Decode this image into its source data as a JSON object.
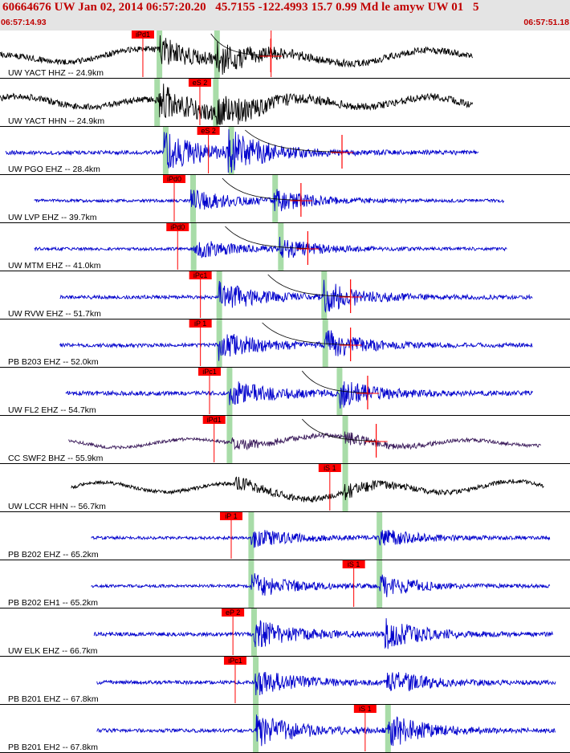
{
  "header": {
    "title": "60664676 UW Jan 02, 2014 06:57:20.20   45.7155 -122.4993 15.7 0.99 Md le amyw UW 01   5",
    "time_start": "06:57:14.93",
    "time_end": "06:57:51.18"
  },
  "colors": {
    "accent_red": "#ff0000",
    "phase_band": "#a8dca8",
    "trace_blue": "#0000cc",
    "trace_black": "#000000",
    "trace_purple": "#3a1a5a"
  },
  "traces": [
    {
      "label": "UW YACT HHZ -- 24.9km",
      "color": "black",
      "amp": 22,
      "seed": 11,
      "xs": 0.0,
      "xe": 0.83,
      "p": 0.279,
      "s": 0.38,
      "growth": 1.5,
      "lowfreq": 0.8,
      "picks": [
        {
          "label": "iPd1",
          "x": 0.245
        },
        {
          "label": "",
          "x": 0.47
        }
      ],
      "bands": [
        0.279,
        0.38
      ],
      "decay": [
        0.37,
        0.475
      ],
      "amp_marker": 0.475
    },
    {
      "label": "UW YACT HHN -- 24.9km",
      "color": "black",
      "amp": 24,
      "seed": 23,
      "xs": 0.0,
      "xe": 0.83,
      "p": 0.279,
      "s": 0.38,
      "growth": 1.6,
      "lowfreq": 0.9,
      "picks": [
        {
          "label": "eS 2",
          "x": 0.345
        }
      ],
      "bands": [
        0.275,
        0.378
      ],
      "decay": null,
      "amp_marker": null
    },
    {
      "label": "UW PGO EHZ -- 28.4km",
      "color": "blue",
      "amp": 15,
      "seed": 37,
      "xs": 0.01,
      "xe": 0.84,
      "p": 0.288,
      "s": 0.4,
      "growth": 3.2,
      "lowfreq": 0.05,
      "picks": [
        {
          "label": "eS 2",
          "x": 0.36
        }
      ],
      "bands": [
        0.29,
        0.405
      ],
      "decay": [
        0.43,
        0.6
      ],
      "amp_marker": 0.6
    },
    {
      "label": "UW LVP EHZ -- 39.7km",
      "color": "blue",
      "amp": 11,
      "seed": 41,
      "xs": 0.06,
      "xe": 0.885,
      "p": 0.335,
      "s": 0.48,
      "growth": 2.4,
      "lowfreq": 0.03,
      "picks": [
        {
          "label": "iPd0",
          "x": 0.3
        }
      ],
      "bands": [
        0.338,
        0.482
      ],
      "decay": [
        0.39,
        0.528
      ],
      "amp_marker": 0.528
    },
    {
      "label": "UW MTM EHZ -- 41.0km",
      "color": "blue",
      "amp": 11,
      "seed": 53,
      "xs": 0.06,
      "xe": 0.89,
      "p": 0.339,
      "s": 0.49,
      "growth": 2.2,
      "lowfreq": 0.03,
      "picks": [
        {
          "label": "iPd0",
          "x": 0.306
        }
      ],
      "bands": [
        0.339,
        0.492
      ],
      "decay": [
        0.395,
        0.54
      ],
      "amp_marker": 0.54
    },
    {
      "label": "UW RVW EHZ -- 51.7km",
      "color": "blue",
      "amp": 14,
      "seed": 61,
      "xs": 0.105,
      "xe": 0.935,
      "p": 0.384,
      "s": 0.568,
      "growth": 2.6,
      "lowfreq": 0.03,
      "picks": [
        {
          "label": "iPc1",
          "x": 0.346
        }
      ],
      "bands": [
        0.384,
        0.568
      ],
      "decay": [
        0.47,
        0.615
      ],
      "amp_marker": 0.615
    },
    {
      "label": "PB B203 EHZ -- 52.0km",
      "color": "blue",
      "amp": 14,
      "seed": 71,
      "xs": 0.105,
      "xe": 0.935,
      "p": 0.384,
      "s": 0.57,
      "growth": 2.6,
      "lowfreq": 0.03,
      "picks": [
        {
          "label": "iP 1",
          "x": 0.346
        }
      ],
      "bands": [
        0.384,
        0.57
      ],
      "decay": [
        0.46,
        0.615
      ],
      "amp_marker": 0.615
    },
    {
      "label": "UW FL2 EHZ -- 54.7km",
      "color": "blue",
      "amp": 16,
      "seed": 83,
      "xs": 0.115,
      "xe": 0.935,
      "p": 0.402,
      "s": 0.595,
      "growth": 2.0,
      "lowfreq": 0.04,
      "picks": [
        {
          "label": "iPc1",
          "x": 0.362
        }
      ],
      "bands": [
        0.402,
        0.595
      ],
      "decay": [
        0.53,
        0.645
      ],
      "amp_marker": 0.645
    },
    {
      "label": "CC SWF2 BHZ -- 55.9km",
      "color": "purple",
      "amp": 12,
      "seed": 97,
      "xs": 0.12,
      "xe": 0.95,
      "p": 0.405,
      "s": 0.605,
      "growth": 1.2,
      "lowfreq": 1.2,
      "picks": [
        {
          "label": "iPd1",
          "x": 0.37
        }
      ],
      "bands": [
        0.402,
        0.605
      ],
      "decay": [
        0.53,
        0.66
      ],
      "amp_marker": 0.66
    },
    {
      "label": "UW LCCR HHN -- 56.7km",
      "color": "black",
      "amp": 14,
      "seed": 101,
      "xs": 0.125,
      "xe": 0.955,
      "p": 0.41,
      "s": 0.605,
      "growth": 1.1,
      "lowfreq": 1.6,
      "picks": [
        {
          "label": "iS 1",
          "x": 0.573
        }
      ],
      "bands": [
        0.605
      ],
      "decay": null,
      "amp_marker": null
    },
    {
      "label": "PB B202 EHZ -- 65.2km",
      "color": "blue",
      "amp": 11,
      "seed": 113,
      "xs": 0.16,
      "xe": 0.965,
      "p": 0.44,
      "s": 0.665,
      "growth": 2.2,
      "lowfreq": 0.02,
      "picks": [
        {
          "label": "iP 1",
          "x": 0.4
        }
      ],
      "bands": [
        0.44,
        0.665
      ],
      "decay": null,
      "amp_marker": null
    },
    {
      "label": "PB B202 EH1 -- 65.2km",
      "color": "blue",
      "amp": 11,
      "seed": 127,
      "xs": 0.16,
      "xe": 0.965,
      "p": 0.44,
      "s": 0.665,
      "growth": 2.8,
      "lowfreq": 0.02,
      "picks": [
        {
          "label": "iS 1",
          "x": 0.615
        }
      ],
      "bands": [
        0.44,
        0.665
      ],
      "decay": null,
      "amp_marker": null
    },
    {
      "label": "UW ELK EHZ -- 66.7km",
      "color": "blue",
      "amp": 14,
      "seed": 131,
      "xs": 0.165,
      "xe": 0.97,
      "p": 0.445,
      "s": 0.675,
      "growth": 2.6,
      "lowfreq": 0.02,
      "picks": [
        {
          "label": "eP 2",
          "x": 0.403
        }
      ],
      "bands": [
        0.445
      ],
      "decay": null,
      "amp_marker": null
    },
    {
      "label": "PB B201 EHZ -- 67.8km",
      "color": "blue",
      "amp": 14,
      "seed": 149,
      "xs": 0.17,
      "xe": 0.975,
      "p": 0.448,
      "s": 0.678,
      "growth": 2.4,
      "lowfreq": 0.02,
      "picks": [
        {
          "label": "iPc1",
          "x": 0.407
        }
      ],
      "bands": [
        0.448
      ],
      "decay": null,
      "amp_marker": null
    },
    {
      "label": "PB B201 EH2 -- 67.8km",
      "color": "blue",
      "amp": 14,
      "seed": 157,
      "xs": 0.17,
      "xe": 0.975,
      "p": 0.448,
      "s": 0.68,
      "growth": 3.0,
      "lowfreq": 0.02,
      "picks": [
        {
          "label": "iS 1",
          "x": 0.635
        }
      ],
      "bands": [
        0.448,
        0.68
      ],
      "decay": null,
      "amp_marker": null
    }
  ]
}
